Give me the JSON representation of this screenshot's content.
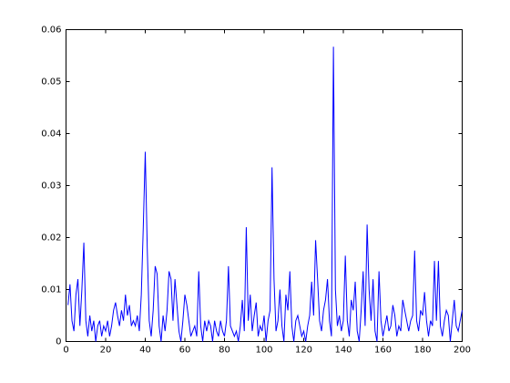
{
  "chart_data": {
    "type": "line",
    "x": [
      1,
      2,
      3,
      4,
      5,
      6,
      7,
      8,
      9,
      10,
      11,
      12,
      13,
      14,
      15,
      16,
      17,
      18,
      19,
      20,
      21,
      22,
      23,
      24,
      25,
      26,
      27,
      28,
      29,
      30,
      31,
      32,
      33,
      34,
      35,
      36,
      37,
      38,
      39,
      40,
      41,
      42,
      43,
      44,
      45,
      46,
      47,
      48,
      49,
      50,
      51,
      52,
      53,
      54,
      55,
      56,
      57,
      58,
      59,
      60,
      61,
      62,
      63,
      64,
      65,
      66,
      67,
      68,
      69,
      70,
      71,
      72,
      73,
      74,
      75,
      76,
      77,
      78,
      79,
      80,
      81,
      82,
      83,
      84,
      85,
      86,
      87,
      88,
      89,
      90,
      91,
      92,
      93,
      94,
      95,
      96,
      97,
      98,
      99,
      100,
      101,
      102,
      103,
      104,
      105,
      106,
      107,
      108,
      109,
      110,
      111,
      112,
      113,
      114,
      115,
      116,
      117,
      118,
      119,
      120,
      121,
      122,
      123,
      124,
      125,
      126,
      127,
      128,
      129,
      130,
      131,
      132,
      133,
      134,
      135,
      136,
      137,
      138,
      139,
      140,
      141,
      142,
      143,
      144,
      145,
      146,
      147,
      148,
      149,
      150,
      151,
      152,
      153,
      154,
      155,
      156,
      157,
      158,
      159,
      160,
      161,
      162,
      163,
      164,
      165,
      166,
      167,
      168,
      169,
      170,
      171,
      172,
      173,
      174,
      175,
      176,
      177,
      178,
      179,
      180,
      181,
      182,
      183,
      184,
      185,
      186,
      187,
      188,
      189,
      190,
      191,
      192,
      193,
      194,
      195,
      196,
      197,
      198,
      199,
      200
    ],
    "series": [
      {
        "color": "#0000ff",
        "values": [
          0.007,
          0.011,
          0.004,
          0.002,
          0.009,
          0.012,
          0.003,
          0.01,
          0.019,
          0.004,
          0.001,
          0.005,
          0.002,
          0.004,
          0.0,
          0.003,
          0.004,
          0.001,
          0.003,
          0.002,
          0.004,
          0.001,
          0.003,
          0.006,
          0.0075,
          0.005,
          0.003,
          0.006,
          0.004,
          0.009,
          0.005,
          0.007,
          0.003,
          0.004,
          0.003,
          0.005,
          0.002,
          0.009,
          0.022,
          0.0365,
          0.018,
          0.004,
          0.001,
          0.006,
          0.0145,
          0.013,
          0.003,
          0.0,
          0.005,
          0.002,
          0.006,
          0.0135,
          0.012,
          0.004,
          0.012,
          0.007,
          0.002,
          0.0,
          0.004,
          0.009,
          0.007,
          0.004,
          0.001,
          0.002,
          0.003,
          0.001,
          0.0135,
          0.003,
          0.0,
          0.004,
          0.002,
          0.004,
          0.003,
          0.0,
          0.004,
          0.002,
          0.001,
          0.004,
          0.002,
          0.001,
          0.004,
          0.0145,
          0.003,
          0.002,
          0.001,
          0.002,
          0.0,
          0.003,
          0.008,
          0.002,
          0.022,
          0.004,
          0.009,
          0.002,
          0.005,
          0.0075,
          0.001,
          0.003,
          0.002,
          0.005,
          0.0,
          0.004,
          0.006,
          0.0335,
          0.012,
          0.002,
          0.004,
          0.01,
          0.003,
          0.0,
          0.009,
          0.006,
          0.0135,
          0.003,
          0.0,
          0.004,
          0.005,
          0.003,
          0.001,
          0.002,
          0.0,
          0.003,
          0.005,
          0.0115,
          0.005,
          0.0195,
          0.012,
          0.004,
          0.002,
          0.006,
          0.008,
          0.012,
          0.004,
          0.001,
          0.0567,
          0.01,
          0.003,
          0.005,
          0.002,
          0.004,
          0.0165,
          0.004,
          0.001,
          0.008,
          0.006,
          0.0115,
          0.002,
          0.0,
          0.006,
          0.0135,
          0.003,
          0.0225,
          0.01,
          0.004,
          0.012,
          0.002,
          0.0,
          0.0135,
          0.004,
          0.001,
          0.003,
          0.005,
          0.002,
          0.003,
          0.007,
          0.005,
          0.001,
          0.003,
          0.002,
          0.008,
          0.006,
          0.004,
          0.002,
          0.004,
          0.005,
          0.0175,
          0.004,
          0.002,
          0.006,
          0.005,
          0.0095,
          0.004,
          0.001,
          0.004,
          0.003,
          0.0155,
          0.004,
          0.0155,
          0.003,
          0.001,
          0.004,
          0.006,
          0.005,
          0.0,
          0.004,
          0.008,
          0.003,
          0.002,
          0.004,
          0.006
        ]
      }
    ],
    "xlim": [
      0,
      200
    ],
    "xticks": [
      0,
      20,
      40,
      60,
      80,
      100,
      120,
      140,
      160,
      180,
      200
    ],
    "ylim": [
      0,
      0.06
    ],
    "yticks": [
      0,
      0.01,
      0.02,
      0.03,
      0.04,
      0.05,
      0.06
    ]
  }
}
